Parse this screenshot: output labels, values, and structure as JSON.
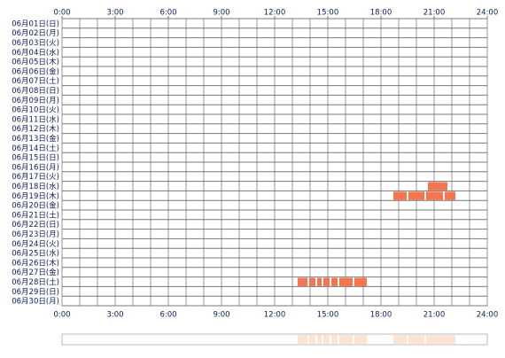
{
  "chart_data": {
    "type": "timeline",
    "categories": [
      "06月01日(日)",
      "06月02日(月)",
      "06月03日(火)",
      "06月04日(水)",
      "06月05日(木)",
      "06月06日(金)",
      "06月07日(土)",
      "06月08日(日)",
      "06月09日(月)",
      "06月10日(火)",
      "06月11日(水)",
      "06月12日(木)",
      "06月13日(金)",
      "06月14日(土)",
      "06月15日(日)",
      "06月16日(月)",
      "06月17日(火)",
      "06月18日(水)",
      "06月19日(木)",
      "06月20日(金)",
      "06月21日(土)",
      "06月22日(日)",
      "06月23日(月)",
      "06月24日(火)",
      "06月25日(水)",
      "06月26日(木)",
      "06月27日(金)",
      "06月28日(土)",
      "06月29日(日)",
      "06月30日(月)"
    ],
    "segments": [
      [],
      [],
      [],
      [],
      [],
      [],
      [],
      [],
      [],
      [],
      [],
      [],
      [],
      [],
      [],
      [],
      [],
      [
        [
          20.65,
          21.75
        ]
      ],
      [
        [
          18.7,
          19.45
        ],
        [
          19.55,
          20.45
        ],
        [
          20.55,
          21.5
        ],
        [
          21.6,
          22.2
        ]
      ],
      [],
      [],
      [],
      [],
      [],
      [],
      [],
      [],
      [
        [
          13.3,
          13.85
        ],
        [
          13.95,
          14.3
        ],
        [
          14.4,
          14.65
        ],
        [
          14.75,
          15.1
        ],
        [
          15.2,
          15.55
        ],
        [
          15.65,
          16.4
        ],
        [
          16.5,
          17.2
        ]
      ],
      [],
      []
    ],
    "color": "#f7754e",
    "summary_color": "#fde3d2",
    "xlim": [
      0,
      24
    ],
    "xticks": [
      {
        "value": 0,
        "label": "0:00"
      },
      {
        "value": 3,
        "label": "3:00"
      },
      {
        "value": 6,
        "label": "6:00"
      },
      {
        "value": 9,
        "label": "9:00"
      },
      {
        "value": 12,
        "label": "12:00"
      },
      {
        "value": 15,
        "label": "15:00"
      },
      {
        "value": 18,
        "label": "18:00"
      },
      {
        "value": 21,
        "label": "21:00"
      },
      {
        "value": 24,
        "label": "24:00"
      }
    ],
    "grid": true
  }
}
